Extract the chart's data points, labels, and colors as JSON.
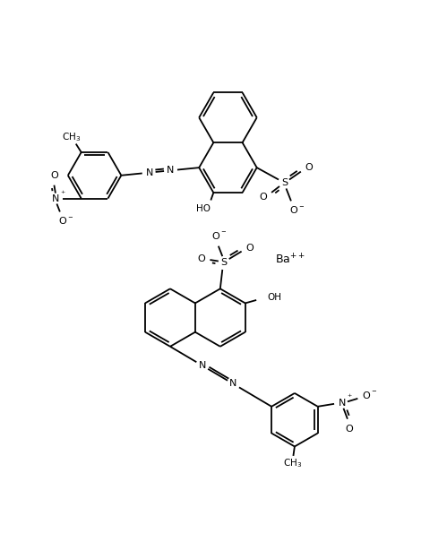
{
  "figsize": [
    4.99,
    5.95
  ],
  "dpi": 100,
  "bg": "#ffffff",
  "lc": "#000000",
  "lw": 1.3,
  "xlim": [
    0,
    10
  ],
  "ylim": [
    0,
    11.9
  ]
}
